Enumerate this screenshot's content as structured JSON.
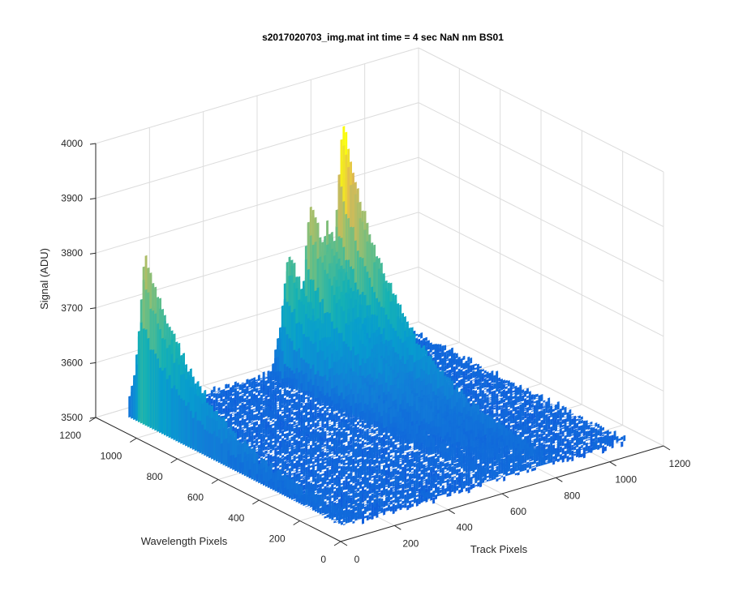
{
  "chart_data": {
    "type": "surface",
    "title": "s2017020703_img.mat int time = 4 sec  NaN nm BS01",
    "xlabel": "Track Pixels",
    "ylabel": "Wavelength Pixels",
    "zlabel": "Signal (ADU)",
    "xlim": [
      0,
      1200
    ],
    "ylim": [
      0,
      1200
    ],
    "zlim": [
      3500,
      4000
    ],
    "x_ticks": [
      0,
      200,
      400,
      600,
      800,
      1000,
      1200
    ],
    "y_ticks": [
      0,
      200,
      400,
      600,
      800,
      1000,
      1200
    ],
    "z_ticks": [
      3500,
      3600,
      3700,
      3800,
      3900,
      4000
    ],
    "x_tick_labels": [
      "0",
      "200",
      "400",
      "600",
      "800",
      "1000",
      "1200"
    ],
    "y_tick_labels": [
      "0",
      "200",
      "400",
      "600",
      "800",
      "1000",
      "1200"
    ],
    "z_tick_labels": [
      "3500",
      "3600",
      "3700",
      "3800",
      "3900",
      "4000"
    ],
    "colormap": "parula",
    "grid": true,
    "baseline_signal": 3530,
    "tracks": [
      {
        "track_pixel": 20,
        "peak_signal": 3840,
        "peak_wavelength_pixel": 990
      },
      {
        "track_pixel": 560,
        "peak_signal": 3760,
        "peak_wavelength_pixel": 1000
      },
      {
        "track_pixel": 640,
        "peak_signal": 3840,
        "peak_wavelength_pixel": 1000
      },
      {
        "track_pixel": 700,
        "peak_signal": 3790,
        "peak_wavelength_pixel": 1000
      },
      {
        "track_pixel": 760,
        "peak_signal": 3970,
        "peak_wavelength_pixel": 1000
      }
    ]
  }
}
